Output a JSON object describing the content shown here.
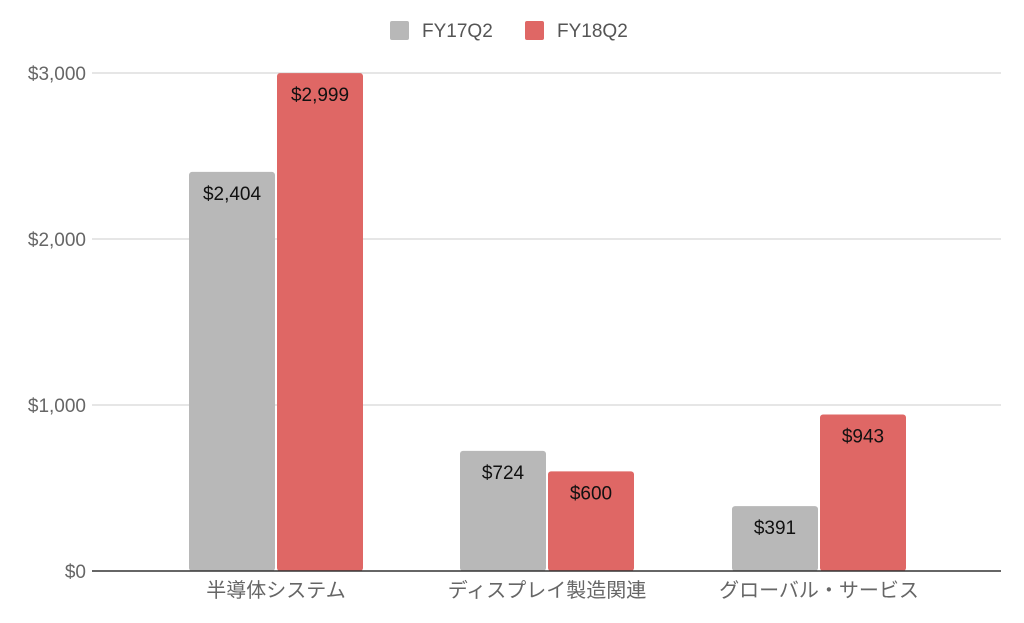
{
  "chart_data": {
    "type": "bar",
    "categories": [
      "半導体システム",
      "ディスプレイ製造関連",
      "グローバル・サービス"
    ],
    "series": [
      {
        "name": "FY17Q2",
        "color": "#b8b8b8",
        "values": [
          2404,
          724,
          391
        ]
      },
      {
        "name": "FY18Q2",
        "color": "#df6765",
        "values": [
          2999,
          600,
          943
        ]
      }
    ],
    "data_labels": [
      [
        "$2,404",
        "$724",
        "$391"
      ],
      [
        "$2,999",
        "$600",
        "$943"
      ]
    ],
    "y_ticks": [
      {
        "value": 0,
        "label": "$0"
      },
      {
        "value": 1000,
        "label": "$1,000"
      },
      {
        "value": 2000,
        "label": "$2,000"
      },
      {
        "value": 3000,
        "label": "$3,000"
      }
    ],
    "ylim": [
      0,
      3000
    ],
    "grid": true,
    "legend_position": "top-center"
  }
}
